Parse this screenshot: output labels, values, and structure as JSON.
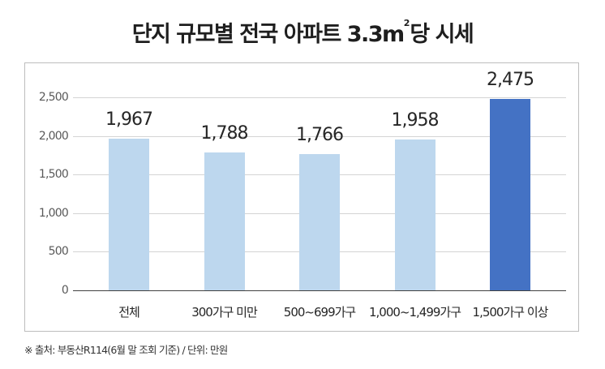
{
  "title": {
    "main": "단지 규모별 전국 아파트 3.3m",
    "superscript": "2",
    "suffix": "당 시세"
  },
  "source_note": "※ 출처: 부동산R114(6월 말 조회 기준) / 단위: 만원",
  "colors": {
    "bar_default": "#bdd7ee",
    "bar_highlight": "#4472c4",
    "gridline": "#d4d4d4",
    "axis": "#404040",
    "frame": "#bdbdbd"
  },
  "chart_data": {
    "type": "bar",
    "title": "단지 규모별 전국 아파트 3.3㎡당 시세",
    "xlabel": "",
    "ylabel": "",
    "unit": "만원",
    "categories": [
      "전체",
      "300가구 미만",
      "500~699가구",
      "1,000~1,499가구",
      "1,500가구 이상"
    ],
    "values": [
      1967,
      1788,
      1766,
      1958,
      2475
    ],
    "value_labels": [
      "1,967",
      "1,788",
      "1,766",
      "1,958",
      "2,475"
    ],
    "highlight_index": 4,
    "ylim": [
      0,
      2500
    ],
    "yticks": [
      0,
      500,
      1000,
      1500,
      2000,
      2500
    ],
    "ytick_labels": [
      "0",
      "500",
      "1,000",
      "1,500",
      "2,000",
      "2,500"
    ],
    "grid": true,
    "legend": "none",
    "source": "부동산R114(6월 말 조회 기준)"
  }
}
